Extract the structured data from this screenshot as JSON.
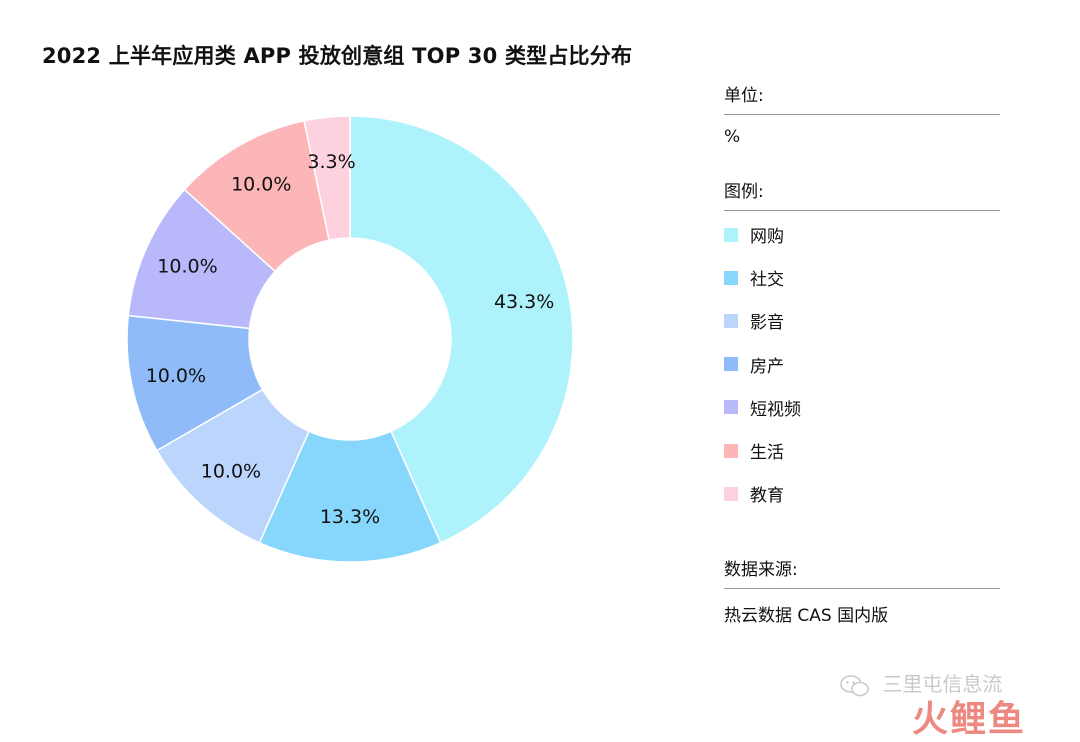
{
  "chart_data": {
    "type": "pie",
    "donut": true,
    "title": "2022 上半年应用类 APP 投放创意组 TOP 30 类型占比分布",
    "unit_label": "单位:",
    "unit": "%",
    "legend_label": "图例:",
    "source_label": "数据来源:",
    "source": "热云数据 CAS 国内版",
    "legend_position": "right",
    "slices": [
      {
        "name": "网购",
        "value": 43.3,
        "label": "43.3%",
        "color": "#aef2fc"
      },
      {
        "name": "社交",
        "value": 13.3,
        "label": "13.3%",
        "color": "#86d7fb"
      },
      {
        "name": "影音",
        "value": 10.0,
        "label": "10.0%",
        "color": "#bcd5fc"
      },
      {
        "name": "房产",
        "value": 10.0,
        "label": "10.0%",
        "color": "#8fbcf8"
      },
      {
        "name": "短视频",
        "value": 10.0,
        "label": "10.0%",
        "color": "#b9b8fb"
      },
      {
        "name": "生活",
        "value": 10.0,
        "label": "10.0%",
        "color": "#fdb6b8"
      },
      {
        "name": "教育",
        "value": 3.3,
        "label": "3.3%",
        "color": "#fdd1de"
      }
    ]
  },
  "watermark": {
    "icon": "wechat-icon",
    "text": "三里屯信息流",
    "logo": "火鲤鱼"
  }
}
